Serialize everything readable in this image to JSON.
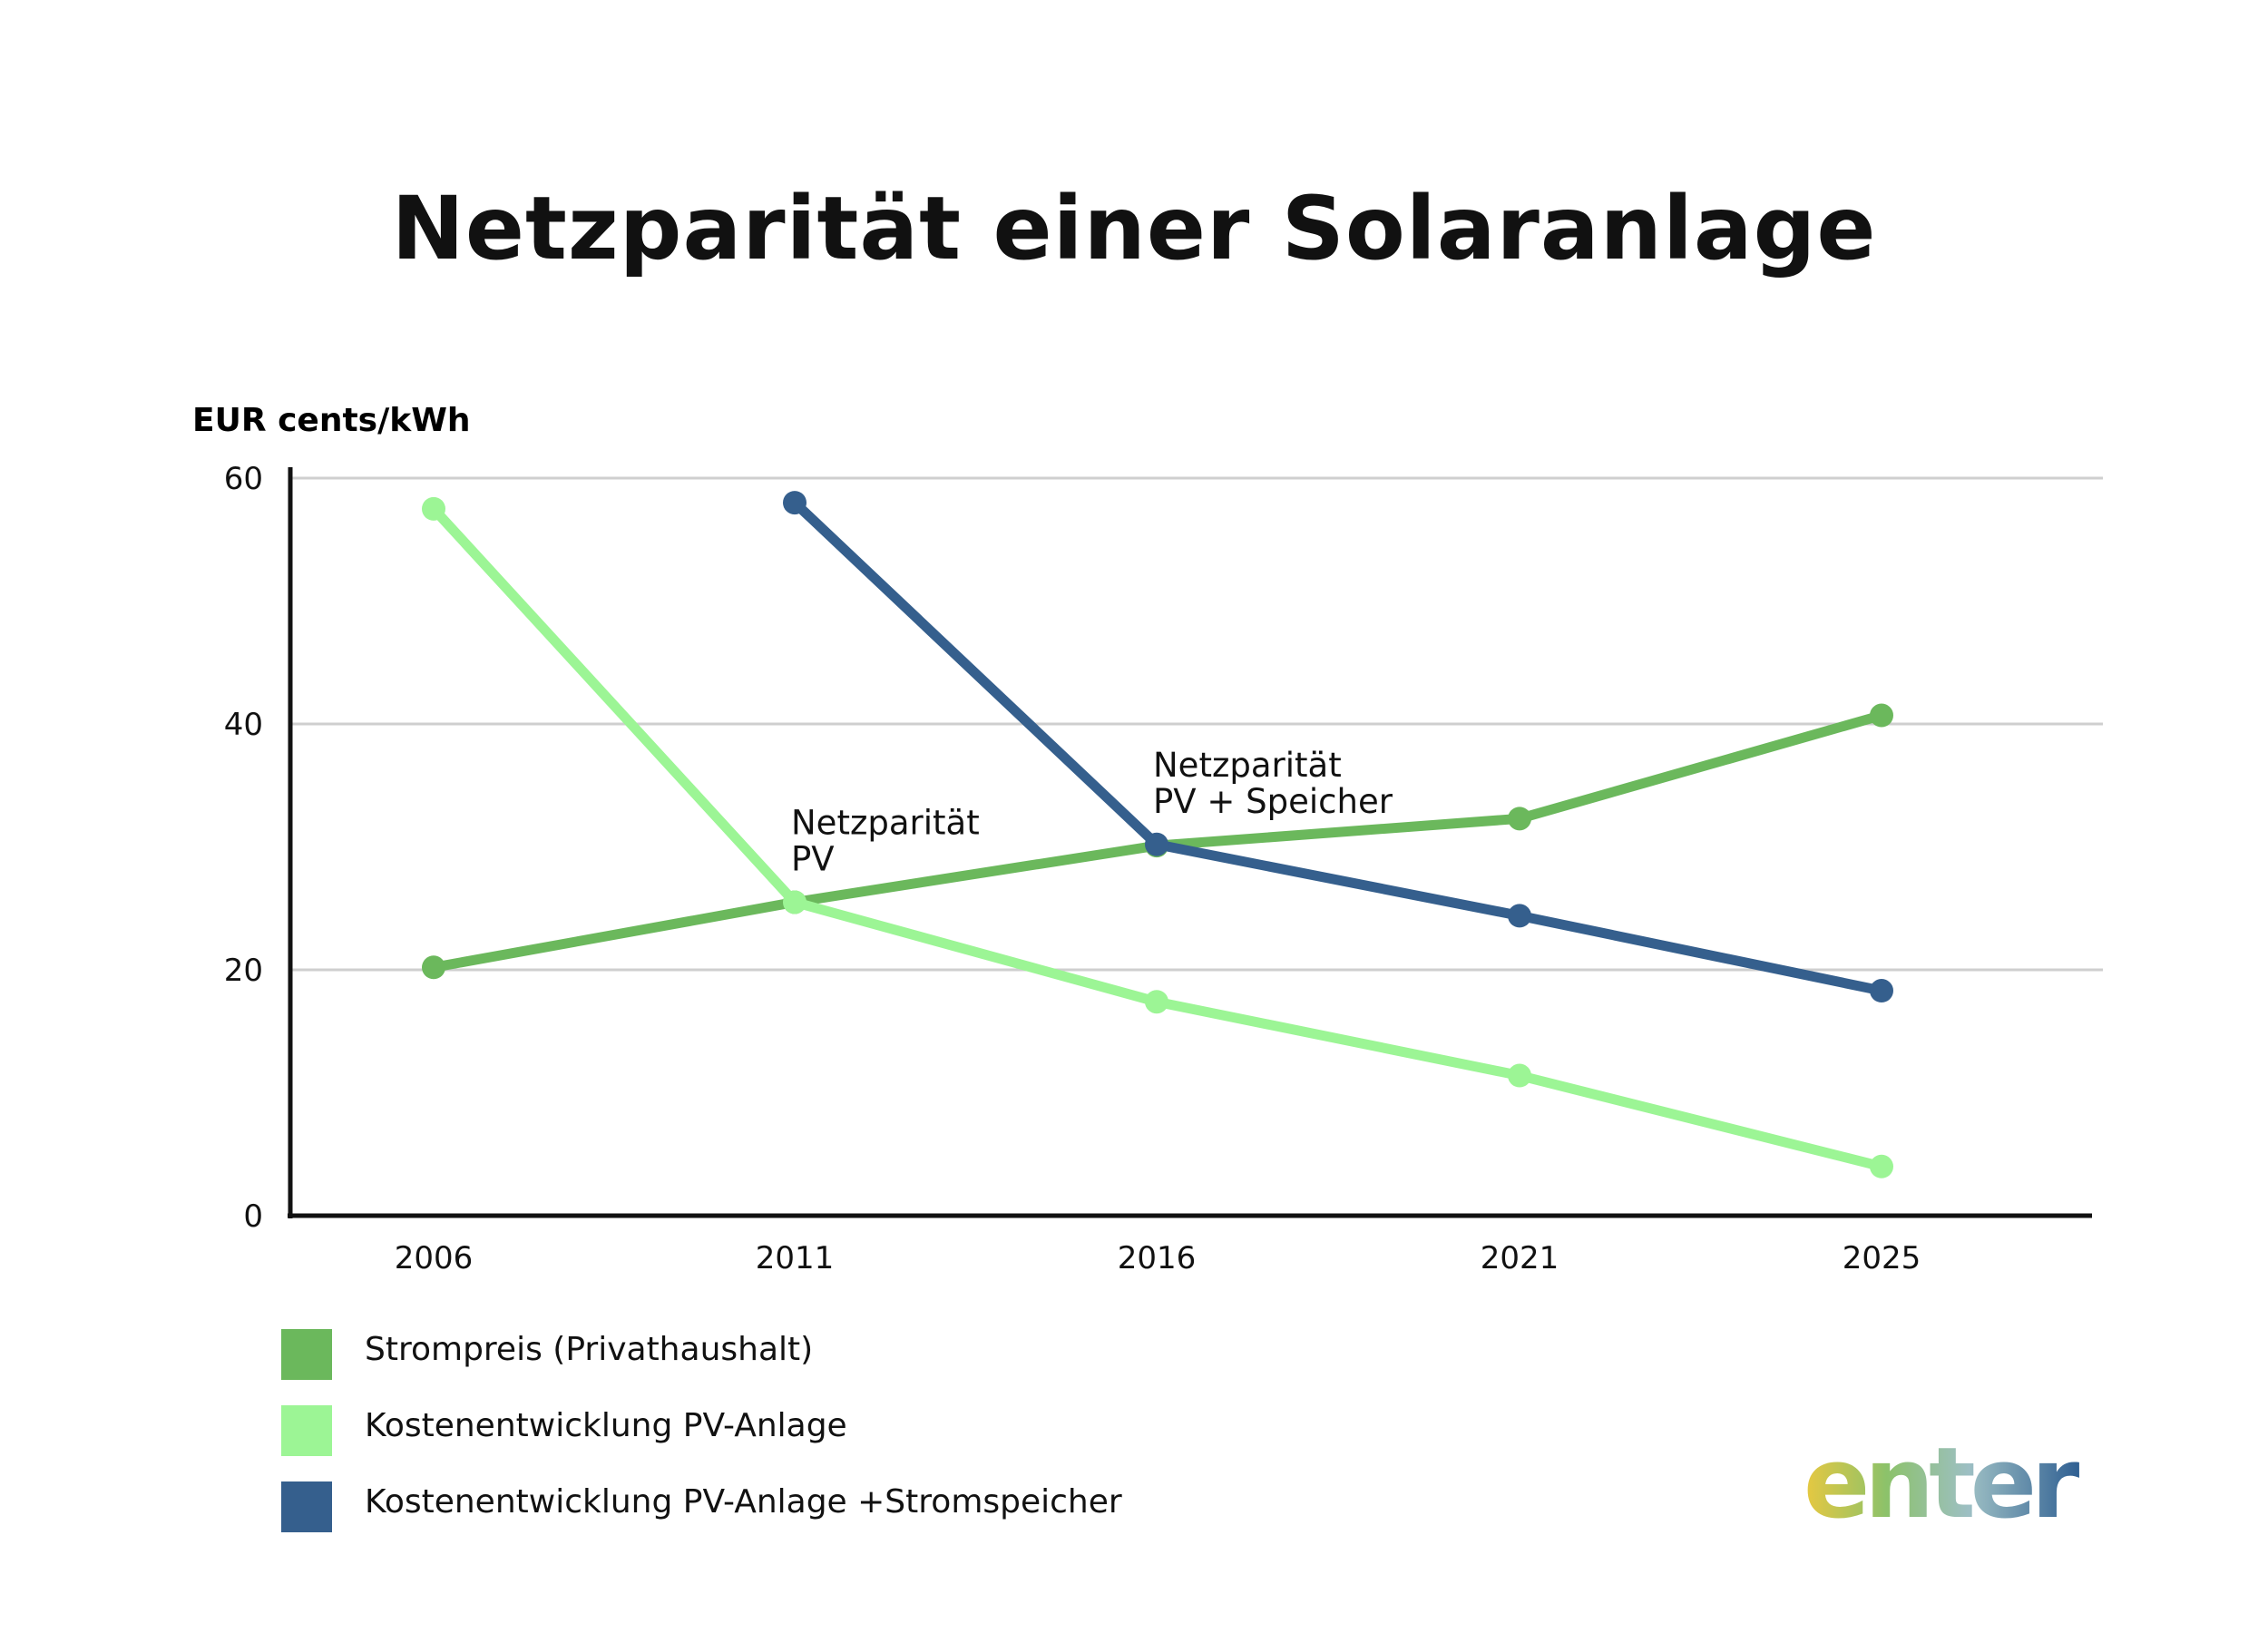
{
  "title": "Netzparität einer Solaranlage",
  "chart_data": {
    "type": "line",
    "title": "Netzparität einer Solaranlage",
    "ylabel": "EUR cents/kWh",
    "xlabel": "",
    "categories": [
      "2006",
      "2011",
      "2016",
      "2021",
      "2025"
    ],
    "ylim": [
      0,
      60
    ],
    "yticks": [
      0,
      20,
      40,
      60
    ],
    "grid": true,
    "legend_position": "bottom-left",
    "series": [
      {
        "name": "Strompreis (Privathaushalt)",
        "color": "#6bb85c",
        "values": [
          20.2,
          25.5,
          30.1,
          32.3,
          40.7
        ]
      },
      {
        "name": "Kostenentwicklung PV-Anlage",
        "color": "#9cf595",
        "values": [
          57.5,
          25.5,
          17.4,
          11.4,
          4.0
        ]
      },
      {
        "name": "Kostenentwicklung PV-Anlage +Stromspeicher",
        "color": "#355f8d",
        "values": [
          null,
          58.0,
          30.2,
          24.4,
          18.3
        ]
      }
    ],
    "annotations": [
      {
        "lines": [
          "Netzparität",
          "PV"
        ],
        "x": "2011",
        "y": 25.5
      },
      {
        "lines": [
          "Netzparität",
          "PV + Speicher"
        ],
        "x": "2016",
        "y": 30.2
      }
    ]
  },
  "logo": {
    "text": "enter"
  }
}
